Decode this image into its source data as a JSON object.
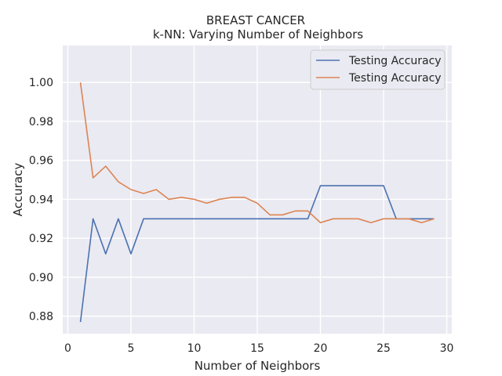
{
  "chart_data": {
    "type": "line",
    "title": "BREAST CANCER",
    "subtitle": "k-NN: Varying Number of Neighbors",
    "xlabel": "Number of Neighbors",
    "ylabel": "Accuracy",
    "xlim": [
      -0.4,
      30.4
    ],
    "ylim": [
      0.871,
      1.019
    ],
    "xticks": [
      0,
      5,
      10,
      15,
      20,
      25,
      30
    ],
    "yticks": [
      0.88,
      0.9,
      0.92,
      0.94,
      0.96,
      0.98,
      1.0
    ],
    "grid": true,
    "legend_position": "top-right",
    "x": [
      1,
      2,
      3,
      4,
      5,
      6,
      7,
      8,
      9,
      10,
      11,
      12,
      13,
      14,
      15,
      16,
      17,
      18,
      19,
      20,
      21,
      22,
      23,
      24,
      25,
      26,
      27,
      28,
      29
    ],
    "series": [
      {
        "name": "Testing Accuracy",
        "color": "#4c72b0",
        "values": [
          0.877,
          0.93,
          0.912,
          0.93,
          0.912,
          0.93,
          0.93,
          0.93,
          0.93,
          0.93,
          0.93,
          0.93,
          0.93,
          0.93,
          0.93,
          0.93,
          0.93,
          0.93,
          0.93,
          0.947,
          0.947,
          0.947,
          0.947,
          0.947,
          0.947,
          0.93,
          0.93,
          0.93,
          0.93
        ]
      },
      {
        "name": "Testing Accuracy",
        "color": "#dd8452",
        "values": [
          1.0,
          0.951,
          0.957,
          0.949,
          0.945,
          0.943,
          0.945,
          0.94,
          0.941,
          0.94,
          0.938,
          0.94,
          0.941,
          0.941,
          0.938,
          0.932,
          0.932,
          0.934,
          0.934,
          0.928,
          0.93,
          0.93,
          0.93,
          0.928,
          0.93,
          0.93,
          0.93,
          0.928,
          0.93
        ]
      }
    ]
  }
}
